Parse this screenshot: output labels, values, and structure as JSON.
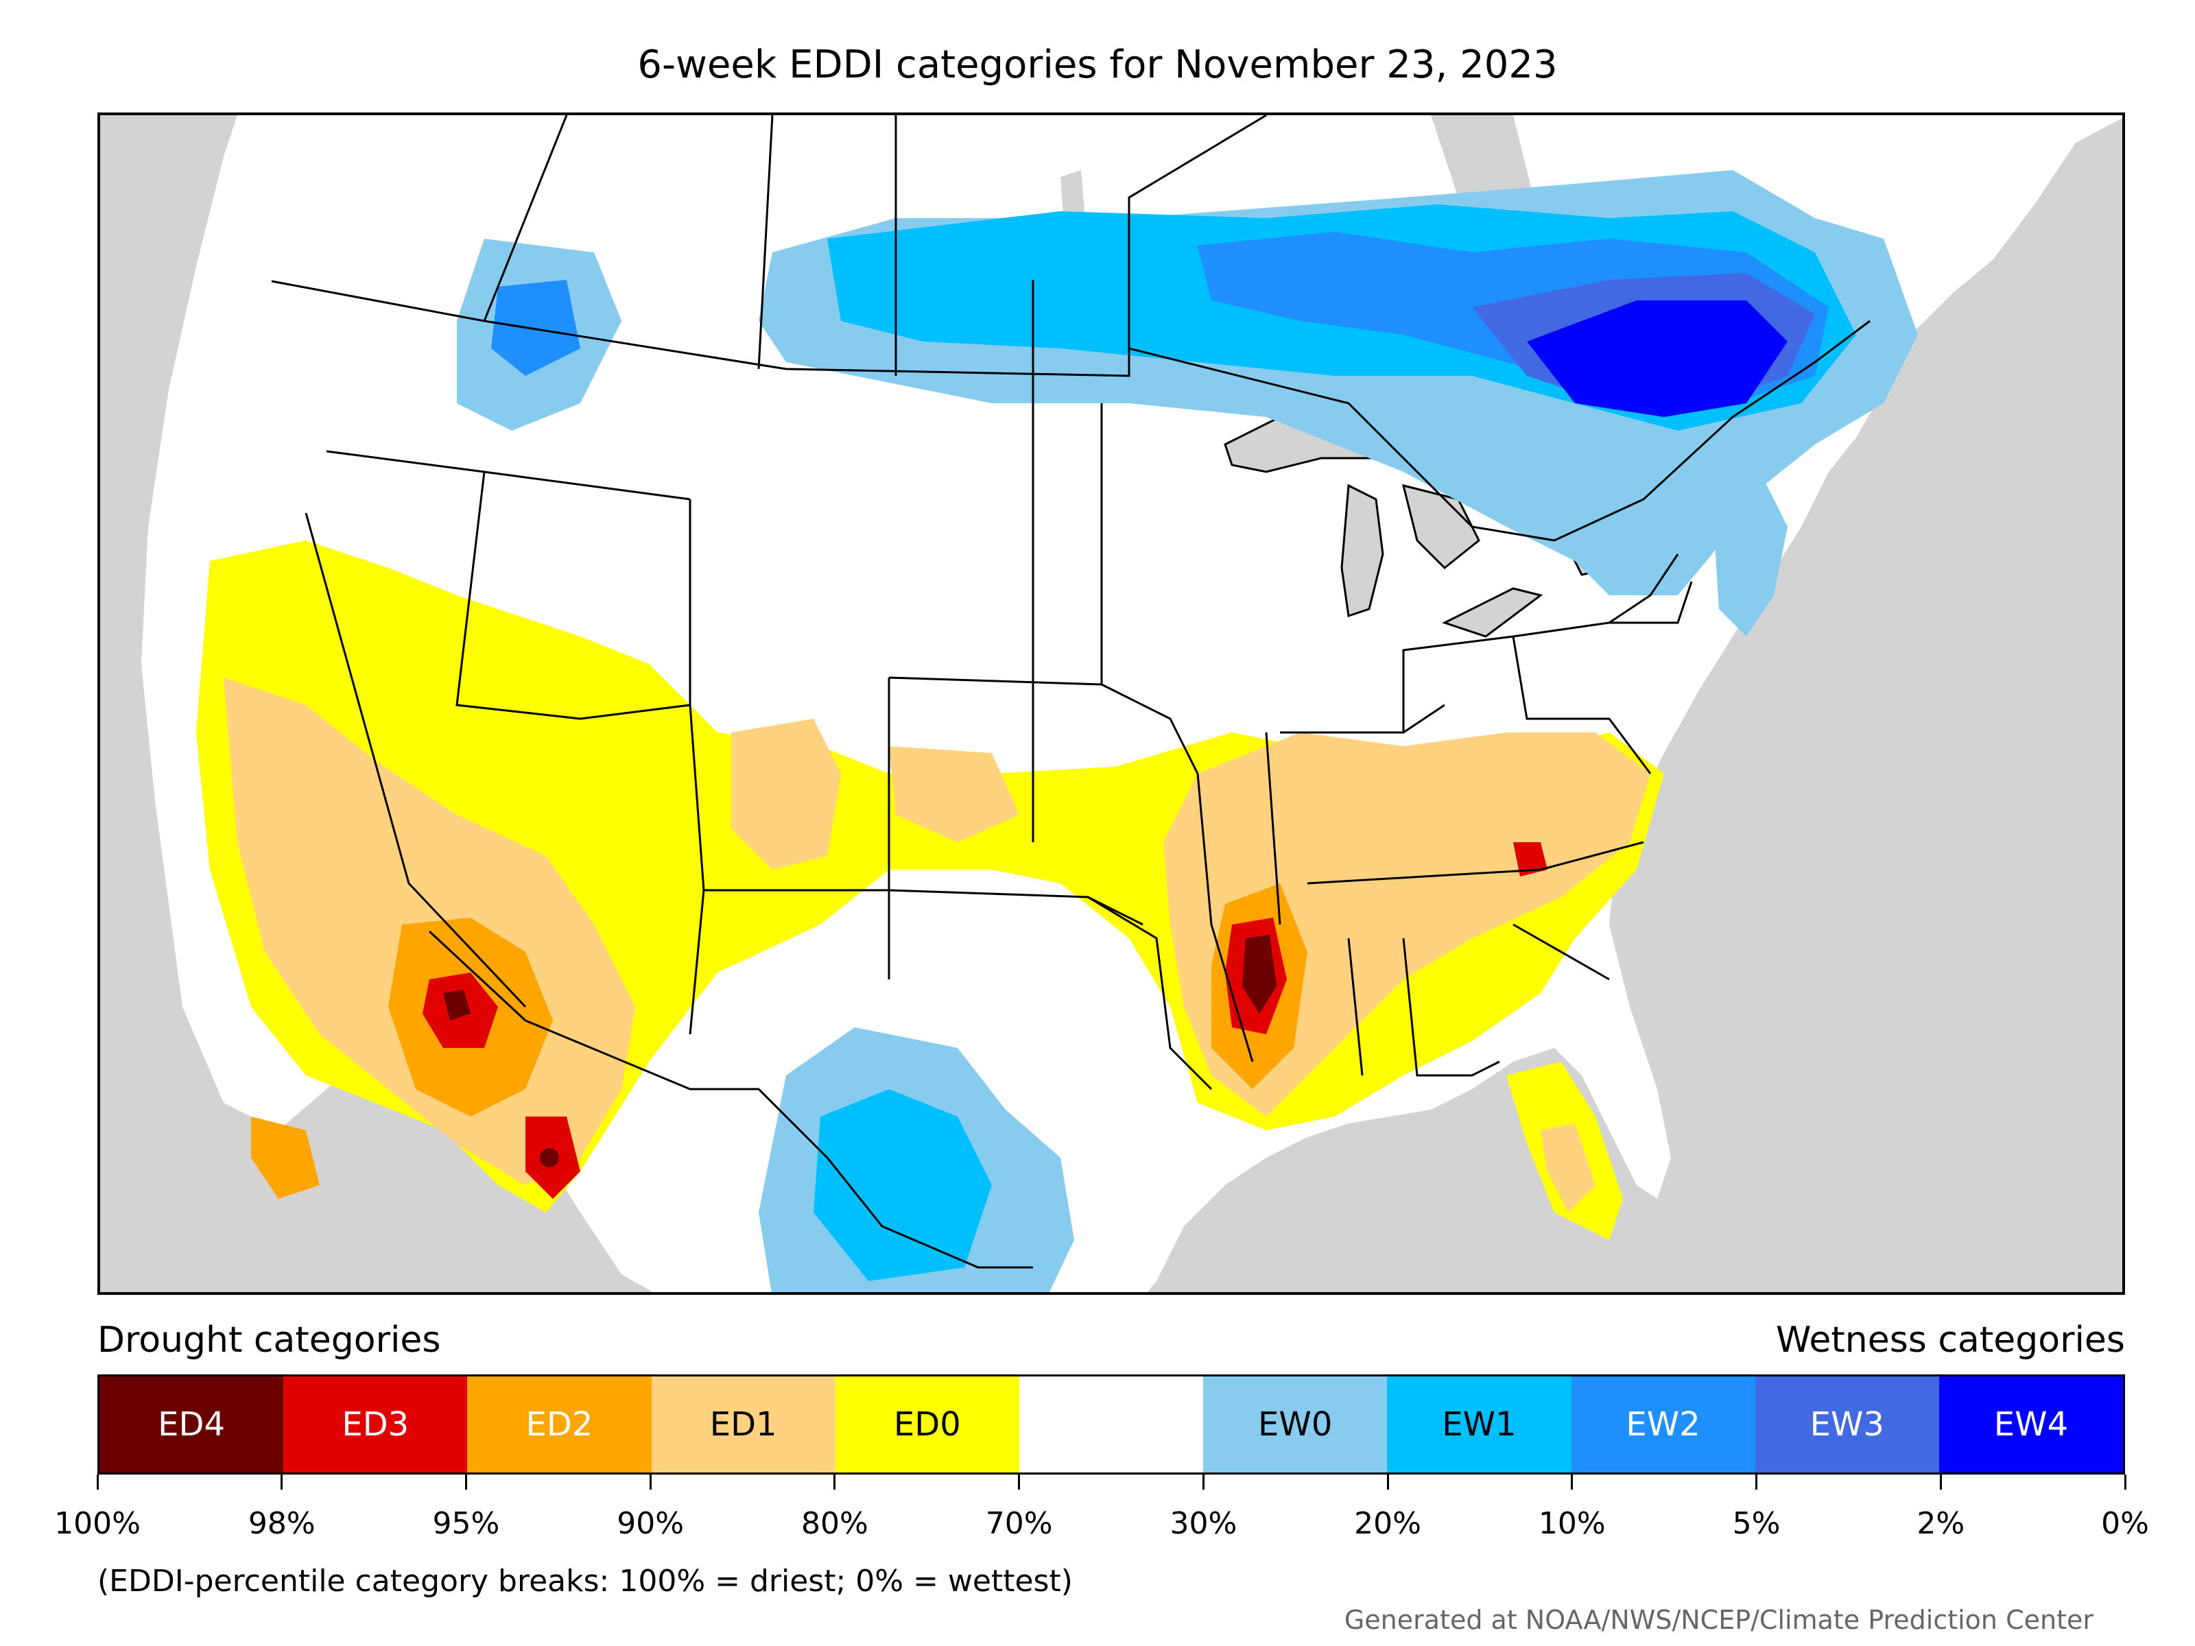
{
  "title": "6-week EDDI categories for November 23, 2023",
  "map": {
    "background_color": "#d3d3d3",
    "land_color": "#ffffff",
    "boundary_color": "#000000"
  },
  "legend": {
    "drought_heading": "Drought categories",
    "wetness_heading": "Wetness categories",
    "categories": [
      {
        "label": "ED4",
        "color": "#6b0000",
        "text_color": "#ffffff"
      },
      {
        "label": "ED3",
        "color": "#e00000",
        "text_color": "#ffffff"
      },
      {
        "label": "ED2",
        "color": "#ffa500",
        "text_color": "#ffffff"
      },
      {
        "label": "ED1",
        "color": "#ffd27f",
        "text_color": "#000000"
      },
      {
        "label": "ED0",
        "color": "#ffff00",
        "text_color": "#000000"
      },
      {
        "label": "",
        "color": "#ffffff",
        "text_color": "#000000"
      },
      {
        "label": "EW0",
        "color": "#87cbef",
        "text_color": "#000000"
      },
      {
        "label": "EW1",
        "color": "#00bfff",
        "text_color": "#000000"
      },
      {
        "label": "EW2",
        "color": "#1e8fff",
        "text_color": "#ffffff"
      },
      {
        "label": "EW3",
        "color": "#4169e1",
        "text_color": "#ffffff"
      },
      {
        "label": "EW4",
        "color": "#0000ff",
        "text_color": "#ffffff"
      }
    ],
    "breaks": [
      "100%",
      "98%",
      "95%",
      "90%",
      "80%",
      "70%",
      "30%",
      "20%",
      "10%",
      "5%",
      "2%",
      "0%"
    ]
  },
  "note": "(EDDI-percentile category breaks: 100% = driest; 0% = wettest)",
  "credit": "Generated at NOAA/NWS/NCEP/Climate Prediction Center"
}
